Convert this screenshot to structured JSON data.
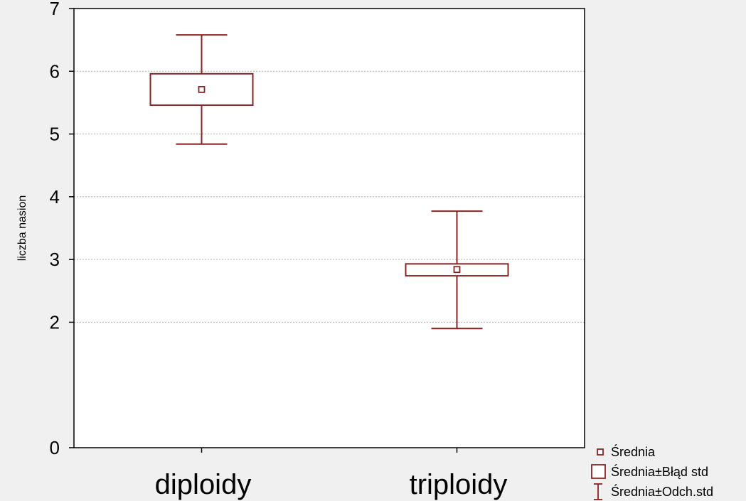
{
  "chart_data": {
    "type": "box",
    "title": "",
    "xlabel": "",
    "ylabel": "liczba nasion",
    "ylim": [
      0,
      7
    ],
    "yticks": [
      0,
      2,
      3,
      4,
      5,
      6,
      7
    ],
    "grid": true,
    "categories": [
      "diploidy",
      "triploidy"
    ],
    "groups": [
      {
        "category": "diploidy",
        "mean": 5.71,
        "se_low": 5.46,
        "se_high": 5.96,
        "sd_low": 4.84,
        "sd_high": 6.58
      },
      {
        "category": "triploidy",
        "mean": 2.84,
        "se_low": 2.74,
        "se_high": 2.93,
        "sd_low": 1.9,
        "sd_high": 3.77
      }
    ],
    "legend": {
      "position": "bottom-right",
      "entries": [
        "Średnia",
        "Średnia±Błąd std",
        "Średnia±Odch.std"
      ]
    },
    "colors": {
      "series": "#8b2323",
      "plot_bg": "#ffffff",
      "page_bg": "#f0f0f0",
      "grid": "#b0b0b0"
    }
  }
}
